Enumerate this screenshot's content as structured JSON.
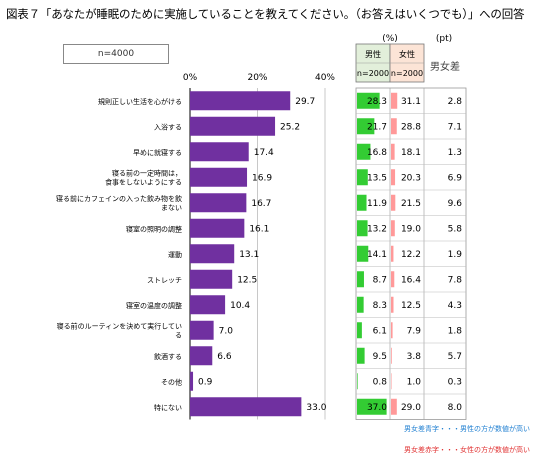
{
  "title": "図表７「あなたが睡眠のために実施していることを教えてください。（お答えはいくつでも）」への回答",
  "sample": "n=4000",
  "unit_pct": "(%)",
  "unit_pt": "(pt)",
  "headers": {
    "male": "男性",
    "male_n": "n=2000",
    "female": "女性",
    "female_n": "n=2000",
    "diff": "男女差"
  },
  "legend": {
    "blue": "男女差青字・・・男性の方が数値が高い",
    "red": "男女差赤字・・・女性の方が数値が高い"
  },
  "colors": {
    "bar": "#7030a0",
    "male_bar": "#33cc33",
    "female_bar": "#ff9999",
    "male_bg": "#e2efda",
    "female_bg": "#fce4d6",
    "blue": "#1f7fd1",
    "red": "#e03030"
  },
  "chart_data": {
    "type": "bar",
    "orientation": "horizontal",
    "xlim": [
      0,
      40
    ],
    "ticks": [
      "0%",
      "20%",
      "40%"
    ],
    "categories": [
      "規則正しい生活を心がける",
      "入浴する",
      "早めに就寝する",
      "寝る前の一定時間は，食事をしないようにする",
      "寝る前にカフェインの入った飲み物を飲まない",
      "寝室の照明の調整",
      "運動",
      "ストレッチ",
      "寝室の温度の調整",
      "寝る前のルーティンを決めて実行している",
      "飲酒する",
      "その他",
      "特にない"
    ],
    "values": [
      29.7,
      25.2,
      17.4,
      16.9,
      16.7,
      16.1,
      13.1,
      12.5,
      10.4,
      7.0,
      6.6,
      0.9,
      33.0
    ],
    "value_labels": [
      "29.7",
      "25.2",
      "17.4",
      "16.9",
      "16.7",
      "16.1",
      "13.1",
      "12.5",
      "10.4",
      "7.0",
      "6.6",
      "0.9",
      "33.0"
    ],
    "male": [
      "28.3",
      "21.7",
      "16.8",
      "13.5",
      "11.9",
      "13.2",
      "14.1",
      "8.7",
      "8.3",
      "6.1",
      "9.5",
      "0.8",
      "37.0"
    ],
    "female": [
      "31.1",
      "28.8",
      "18.1",
      "20.3",
      "21.5",
      "19.0",
      "12.2",
      "16.4",
      "12.5",
      "7.9",
      "3.8",
      "1.0",
      "29.0"
    ],
    "diff": [
      "2.8",
      "7.1",
      "1.3",
      "6.9",
      "9.6",
      "5.8",
      "1.9",
      "7.8",
      "4.3",
      "1.8",
      "5.7",
      "0.3",
      "8.0"
    ],
    "diff_sign": [
      "red",
      "red",
      "red",
      "red",
      "red",
      "red",
      "blue",
      "red",
      "red",
      "red",
      "blue",
      "red",
      "blue"
    ]
  }
}
